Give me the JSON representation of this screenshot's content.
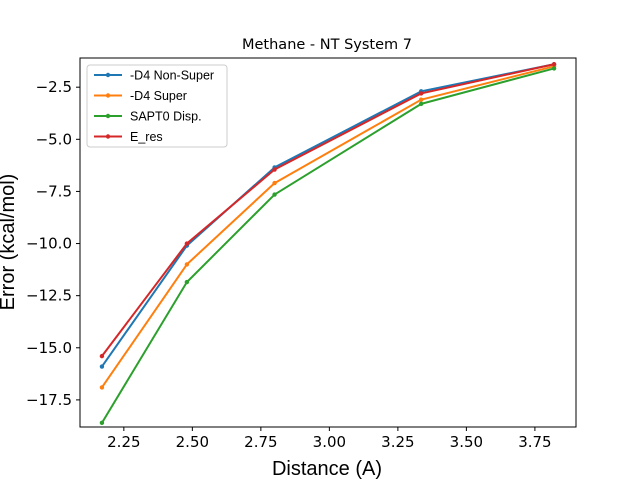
{
  "chart_data": {
    "type": "line",
    "title": "Methane - NT System 7",
    "xlabel": "Distance (A)",
    "ylabel": "Error (kcal/mol)",
    "x": [
      2.17,
      2.48,
      2.8,
      3.335,
      3.82
    ],
    "xlim": [
      2.09,
      3.9
    ],
    "ylim": [
      -18.8,
      -1.1
    ],
    "xticks": [
      2.25,
      2.5,
      2.75,
      3.0,
      3.25,
      3.5,
      3.75
    ],
    "xtick_labels": [
      "2.25",
      "2.50",
      "2.75",
      "3.00",
      "3.25",
      "3.50",
      "3.75"
    ],
    "yticks": [
      -2.5,
      -5.0,
      -7.5,
      -10.0,
      -12.5,
      -15.0,
      -17.5
    ],
    "ytick_labels": [
      "−2.5",
      "−5.0",
      "−7.5",
      "−10.0",
      "−12.5",
      "−15.0",
      "−17.5"
    ],
    "grid": false,
    "legend_position": "top-left",
    "series": [
      {
        "name": "-D4 Non-Super",
        "color": "#1f77b4",
        "values": [
          -15.9,
          -10.1,
          -6.35,
          -2.7,
          -1.4
        ]
      },
      {
        "name": "-D4 Super",
        "color": "#ff7f0e",
        "values": [
          -16.9,
          -11.0,
          -7.1,
          -3.1,
          -1.5
        ]
      },
      {
        "name": "SAPT0 Disp.",
        "color": "#2ca02c",
        "values": [
          -18.6,
          -11.85,
          -7.65,
          -3.3,
          -1.6
        ]
      },
      {
        "name": "E_res",
        "color": "#d62728",
        "values": [
          -15.4,
          -10.0,
          -6.45,
          -2.8,
          -1.4
        ]
      }
    ]
  }
}
